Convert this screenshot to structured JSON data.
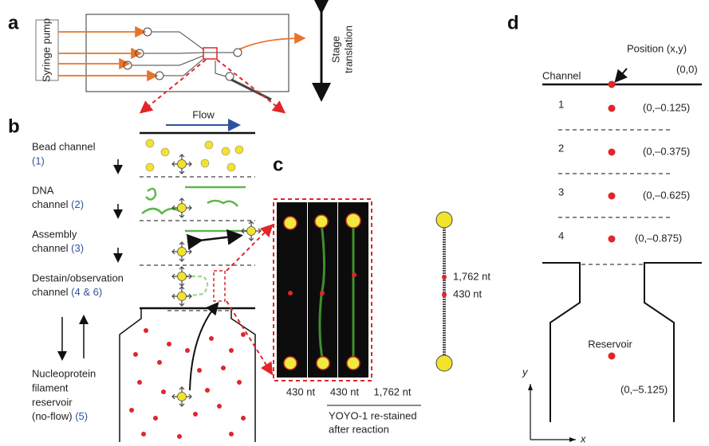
{
  "panel_a": {
    "label": "a",
    "syringe": "Syringe pump",
    "stage": [
      "Stage",
      "translation"
    ]
  },
  "panel_b": {
    "label": "b",
    "flow": "Flow",
    "channels": [
      {
        "lines": [
          "Bead channel"
        ],
        "number": "(1)"
      },
      {
        "lines": [
          "DNA",
          "channel"
        ],
        "number": "(2)"
      },
      {
        "lines": [
          "Assembly",
          "channel"
        ],
        "number": "(3)"
      },
      {
        "lines": [
          "Destain/observation",
          "channel"
        ],
        "number": "(4 & 6)"
      },
      {
        "lines": [
          "Nucleoprotein",
          "filament",
          "reservoir",
          "(no-flow)"
        ],
        "number": "(5)"
      }
    ]
  },
  "panel_c": {
    "label": "c",
    "lanes": [
      "430 nt",
      "430 nt",
      "1,762 nt"
    ],
    "markers": [
      "1,762 nt",
      "430 nt"
    ],
    "caption": [
      "YOYO-1 re-stained",
      "after reaction"
    ]
  },
  "panel_d": {
    "label": "d",
    "position": "Position (x,y)",
    "origin": "(0,0)",
    "channel": "Channel",
    "rows": [
      {
        "channel": "1",
        "position": "(0,–0.125)"
      },
      {
        "channel": "2",
        "position": "(0,–0.375)"
      },
      {
        "channel": "3",
        "position": "(0,–0.625)"
      },
      {
        "channel": "4",
        "position": "(0,–0.875)"
      }
    ],
    "reservoir": "Reservoir",
    "reservoir_position": "(0,–5.125)",
    "y_axis": "y",
    "x_axis": "x"
  }
}
